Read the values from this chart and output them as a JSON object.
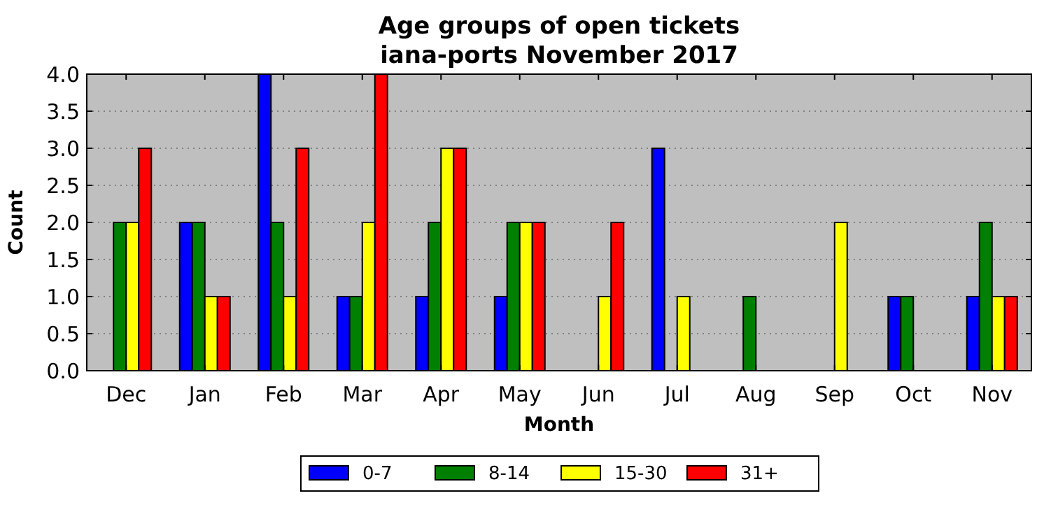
{
  "chart_data": {
    "type": "bar",
    "title": "Age groups of open tickets\niana-ports November 2017",
    "xlabel": "Month",
    "ylabel": "Count",
    "categories": [
      "Dec",
      "Jan",
      "Feb",
      "Mar",
      "Apr",
      "May",
      "Jun",
      "Jul",
      "Aug",
      "Sep",
      "Oct",
      "Nov"
    ],
    "series": [
      {
        "name": "0-7",
        "color": "#0000ff",
        "values": [
          0,
          2,
          4,
          1,
          1,
          1,
          0,
          3,
          0,
          0,
          1,
          1
        ]
      },
      {
        "name": "8-14",
        "color": "#008000",
        "values": [
          2,
          2,
          2,
          1,
          2,
          2,
          0,
          0,
          1,
          0,
          1,
          2
        ]
      },
      {
        "name": "15-30",
        "color": "#ffff00",
        "values": [
          2,
          1,
          1,
          2,
          3,
          2,
          1,
          1,
          0,
          2,
          0,
          1
        ]
      },
      {
        "name": "31+",
        "color": "#ff0000",
        "values": [
          3,
          1,
          3,
          4,
          3,
          2,
          2,
          0,
          0,
          0,
          0,
          1
        ]
      }
    ],
    "ylim": [
      0,
      4
    ],
    "yticks": [
      {
        "value": 0,
        "label": "0.0"
      },
      {
        "value": 0.5,
        "label": "0.5"
      },
      {
        "value": 1,
        "label": "1.0"
      },
      {
        "value": 1.5,
        "label": "1.5"
      },
      {
        "value": 2,
        "label": "2.0"
      },
      {
        "value": 2.5,
        "label": "2.5"
      },
      {
        "value": 3,
        "label": "3.0"
      },
      {
        "value": 3.5,
        "label": "3.5"
      },
      {
        "value": 4,
        "label": "4.0"
      }
    ],
    "grid": "y",
    "legend": "bottom"
  }
}
